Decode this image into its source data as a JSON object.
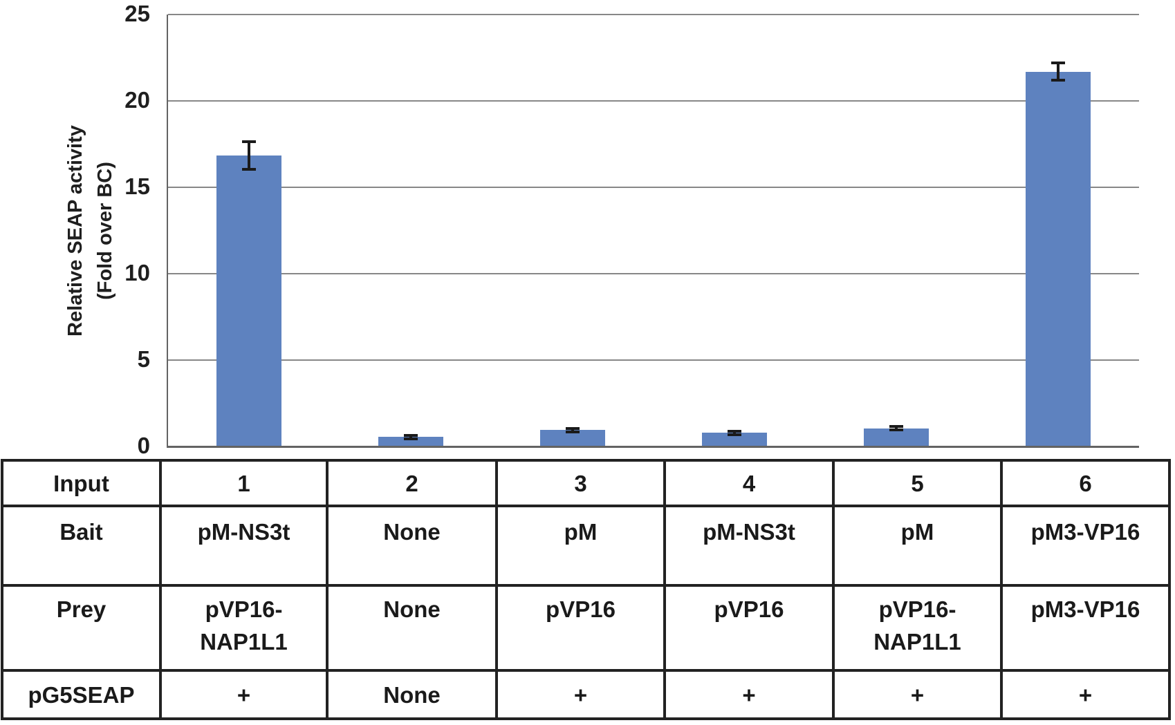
{
  "chart_data": {
    "type": "bar",
    "title": "",
    "ylabel_line1": "Relative SEAP activity",
    "ylabel_line2": "(Fold over BC)",
    "xlabel": "",
    "categories": [
      "1",
      "2",
      "3",
      "4",
      "5",
      "6"
    ],
    "values": [
      16.85,
      0.55,
      0.95,
      0.8,
      1.05,
      21.7
    ],
    "errors": [
      0.8,
      0.1,
      0.1,
      0.1,
      0.1,
      0.5
    ],
    "yticks": [
      0,
      5,
      10,
      15,
      20,
      25
    ],
    "ylim": [
      0,
      25
    ],
    "grid": "horizontal-only",
    "legend": "none",
    "bar_color": "#5e82bf",
    "gridline_color": "#878787",
    "axis_color": "#636363",
    "error_bar_color": "#1a1a1a"
  },
  "table": {
    "rows": [
      {
        "label": "Input",
        "valign": "middle",
        "cells": [
          "1",
          "2",
          "3",
          "4",
          "5",
          "6"
        ]
      },
      {
        "label": "Bait",
        "valign": "top",
        "cells": [
          "pM-NS3t",
          "None",
          "pM",
          "pM-NS3t",
          "pM",
          "pM3-VP16"
        ]
      },
      {
        "label": "Prey",
        "valign": "top",
        "cells": [
          "pVP16-\nNAP1L1",
          "None",
          "pVP16",
          "pVP16",
          "pVP16-\nNAP1L1",
          "pM3-VP16"
        ]
      },
      {
        "label": "pG5SEAP",
        "valign": "middle",
        "cells": [
          "+",
          "None",
          "+",
          "+",
          "+",
          "+"
        ]
      }
    ]
  }
}
